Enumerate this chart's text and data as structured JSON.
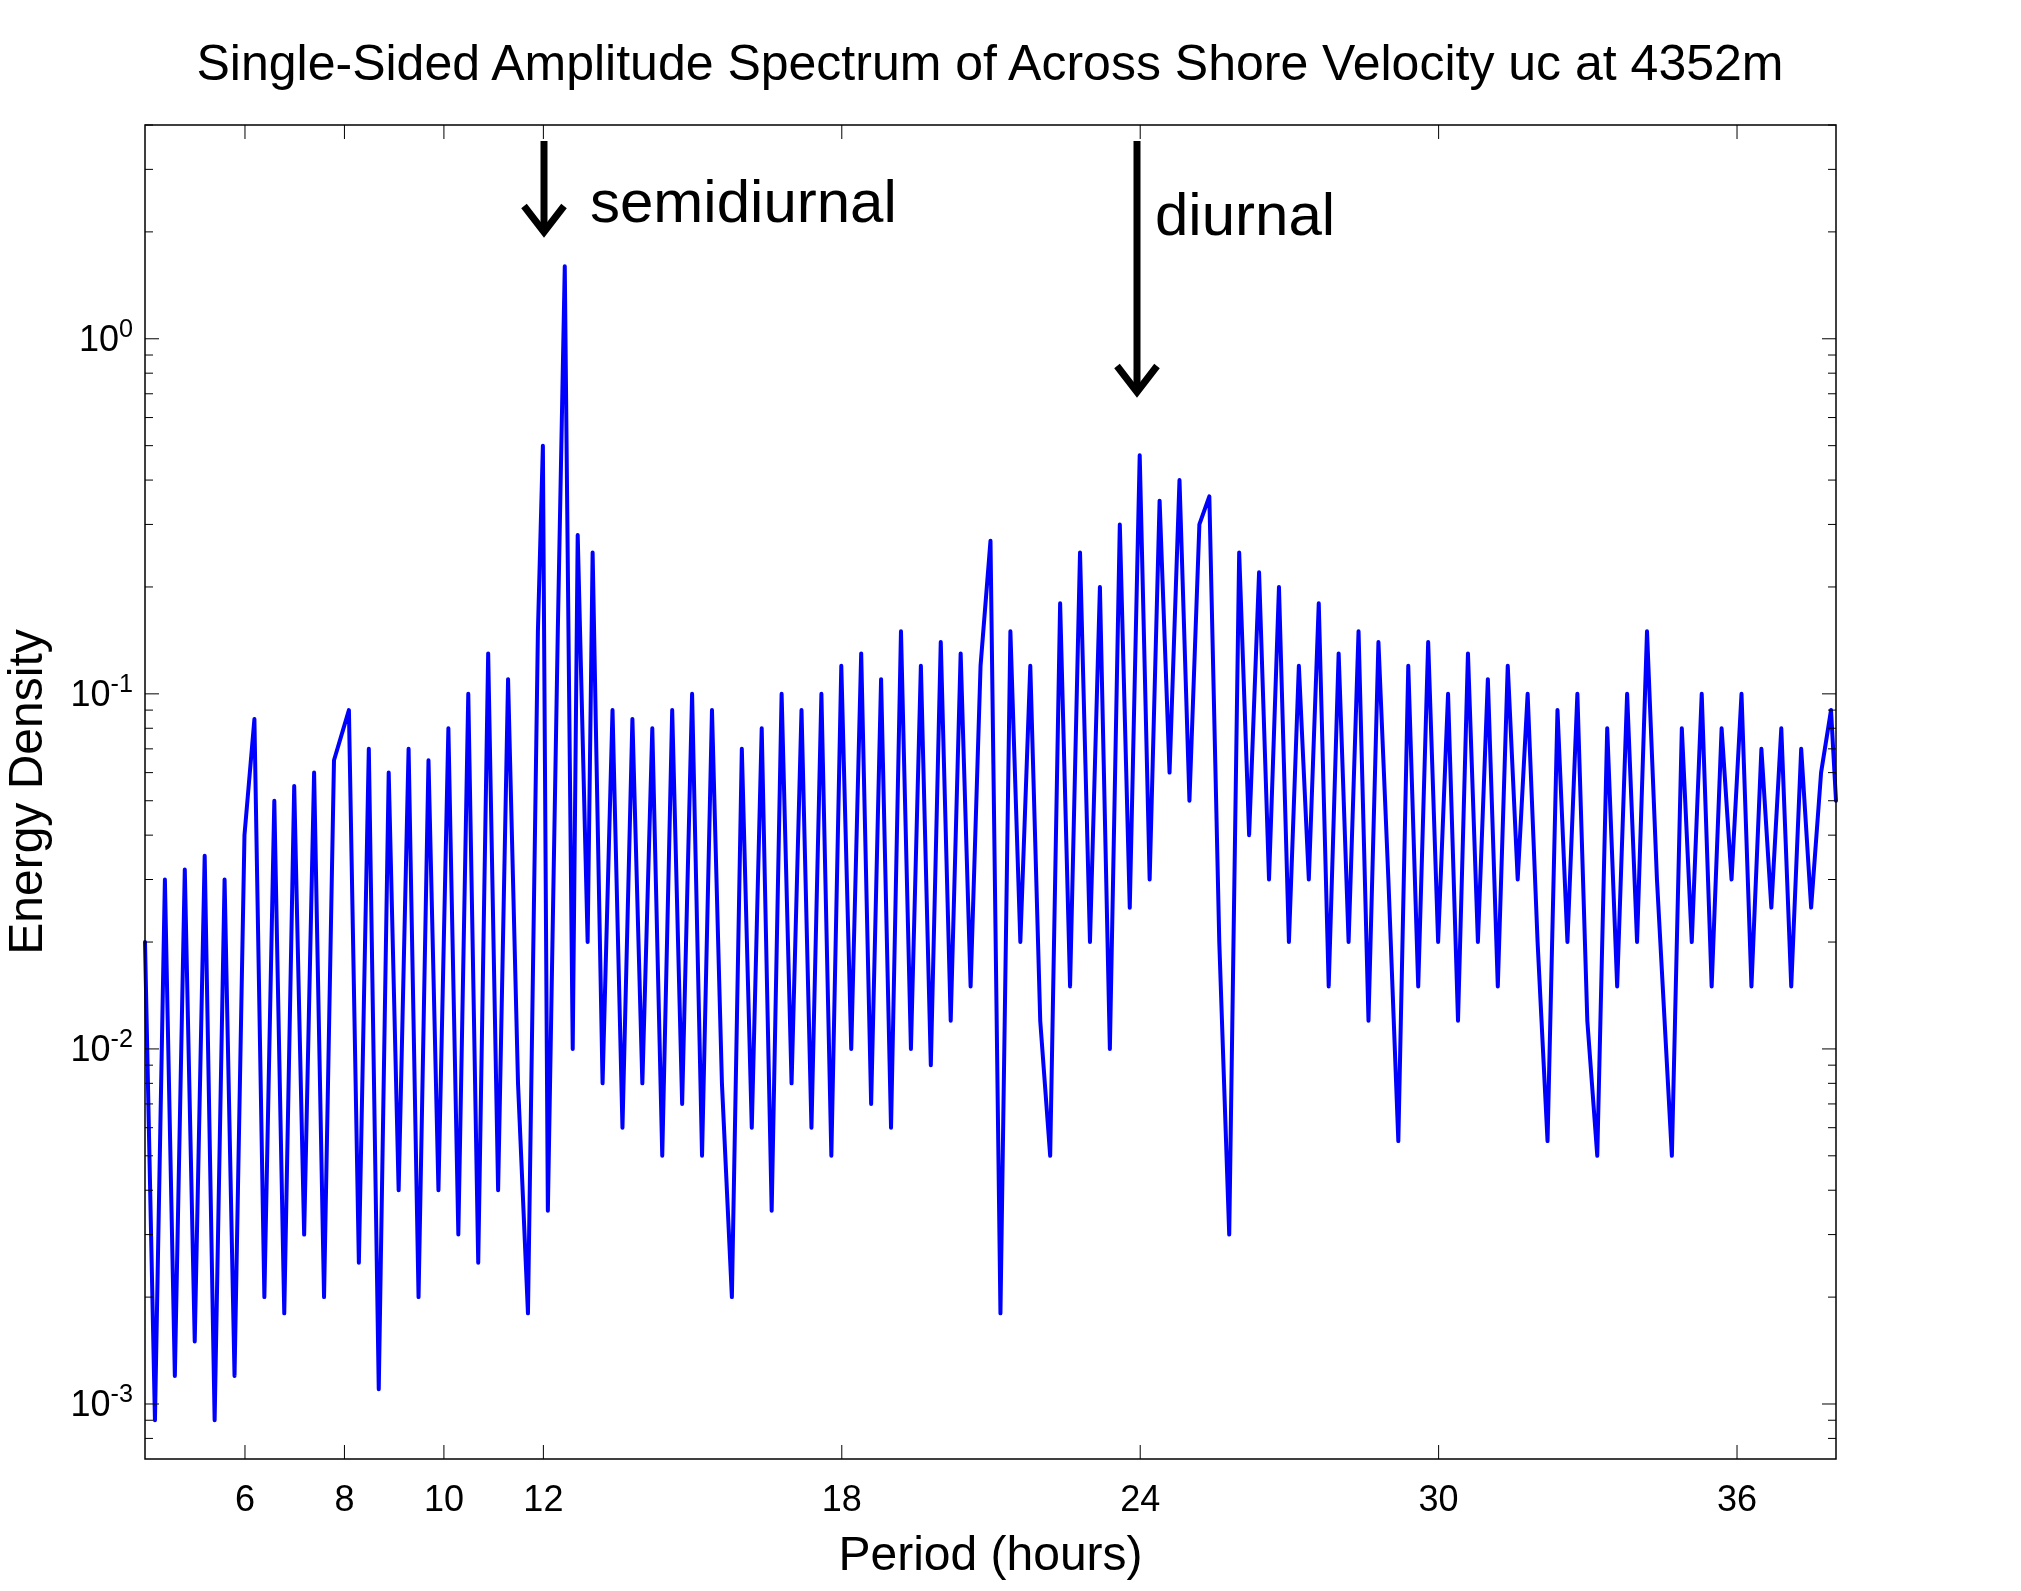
{
  "chart_data": {
    "type": "line",
    "title": "Single-Sided Amplitude Spectrum of Across Shore Velocity uc at 4352m",
    "xlabel": "Period (hours)",
    "ylabel": "Energy Density",
    "log": "y",
    "grid": false,
    "marker": "none",
    "line_style": "solid",
    "xlim": [
      4,
      38
    ],
    "xticks": [
      6,
      8,
      10,
      12,
      18,
      24,
      30,
      36
    ],
    "ylim": [
      0.0007,
      4
    ],
    "yticks": [
      {
        "value": 0.0008,
        "label": null
      },
      {
        "value": 0.0009,
        "label": null
      },
      {
        "value": 0.001,
        "label": "10$^{-3}$"
      },
      {
        "value": 0.002,
        "label": null
      },
      {
        "value": 0.003,
        "label": null
      },
      {
        "value": 0.004,
        "label": null
      },
      {
        "value": 0.005,
        "label": null
      },
      {
        "value": 0.006,
        "label": null
      },
      {
        "value": 0.007,
        "label": null
      },
      {
        "value": 0.008,
        "label": null
      },
      {
        "value": 0.009,
        "label": null
      },
      {
        "value": 0.01,
        "label": "10$^{-2}$"
      },
      {
        "value": 0.02,
        "label": null
      },
      {
        "value": 0.03,
        "label": null
      },
      {
        "value": 0.04,
        "label": null
      },
      {
        "value": 0.05,
        "label": null
      },
      {
        "value": 0.06,
        "label": null
      },
      {
        "value": 0.07,
        "label": null
      },
      {
        "value": 0.08,
        "label": null
      },
      {
        "value": 0.09,
        "label": null
      },
      {
        "value": 0.1,
        "label": "10$^{-1}$"
      },
      {
        "value": 0.2,
        "label": null
      },
      {
        "value": 0.3,
        "label": null
      },
      {
        "value": 0.4,
        "label": null
      },
      {
        "value": 0.5,
        "label": null
      },
      {
        "value": 0.6,
        "label": null
      },
      {
        "value": 0.7,
        "label": null
      },
      {
        "value": 0.8,
        "label": null
      },
      {
        "value": 0.9,
        "label": null
      },
      {
        "value": 1,
        "label": "10$^{0}$"
      },
      {
        "value": 2,
        "label": null
      },
      {
        "value": 3,
        "label": null
      },
      {
        "value": 4,
        "label": null
      }
    ],
    "annotations": [
      "semidiurnal",
      "diurnal"
    ],
    "series": [
      {
        "color": "#0000ff",
        "x": [
          4.0,
          4.2,
          4.4,
          4.6,
          4.8,
          5.0,
          5.2,
          5.4,
          5.6,
          5.8,
          6.0,
          6.2,
          6.4,
          6.6,
          6.8,
          7.0,
          7.2,
          7.4,
          7.6,
          7.8,
          8.1,
          8.3,
          8.5,
          8.7,
          8.9,
          9.1,
          9.3,
          9.5,
          9.7,
          9.9,
          10.1,
          10.3,
          10.5,
          10.7,
          10.9,
          11.1,
          11.3,
          11.5,
          11.7,
          11.9,
          12.0,
          12.1,
          12.3,
          12.44,
          12.6,
          12.7,
          12.9,
          13.0,
          13.2,
          13.4,
          13.6,
          13.8,
          14.0,
          14.2,
          14.4,
          14.6,
          14.8,
          15.0,
          15.2,
          15.4,
          15.6,
          15.8,
          16.0,
          16.2,
          16.4,
          16.6,
          16.8,
          17.0,
          17.2,
          17.4,
          17.6,
          17.8,
          18.0,
          18.2,
          18.4,
          18.6,
          18.8,
          19.0,
          19.2,
          19.4,
          19.6,
          19.8,
          20.0,
          20.2,
          20.4,
          20.6,
          20.8,
          21.0,
          21.2,
          21.4,
          21.6,
          21.8,
          22.0,
          22.2,
          22.4,
          22.6,
          22.8,
          23.0,
          23.2,
          23.4,
          23.6,
          23.8,
          24.0,
          24.2,
          24.4,
          24.6,
          24.8,
          25.0,
          25.2,
          25.4,
          25.6,
          25.8,
          26.0,
          26.2,
          26.4,
          26.6,
          26.8,
          27.0,
          27.2,
          27.4,
          27.6,
          27.8,
          28.0,
          28.2,
          28.4,
          28.6,
          28.8,
          29.0,
          29.2,
          29.4,
          29.6,
          29.8,
          30.0,
          30.2,
          30.4,
          30.6,
          30.8,
          31.0,
          31.2,
          31.4,
          31.6,
          31.8,
          32.0,
          32.2,
          32.4,
          32.6,
          32.8,
          33.0,
          33.2,
          33.4,
          33.6,
          33.8,
          34.0,
          34.2,
          34.4,
          34.7,
          34.9,
          35.1,
          35.3,
          35.5,
          35.7,
          35.9,
          36.1,
          36.3,
          36.5,
          36.7,
          36.9,
          37.1,
          37.3,
          37.5,
          37.7,
          37.9,
          38.0
        ],
        "values": [
          0.02,
          0.0009,
          0.03,
          0.0012,
          0.032,
          0.0015,
          0.035,
          0.0009,
          0.03,
          0.0012,
          0.04,
          0.085,
          0.002,
          0.05,
          0.0018,
          0.055,
          0.003,
          0.06,
          0.002,
          0.065,
          0.09,
          0.0025,
          0.07,
          0.0011,
          0.06,
          0.004,
          0.07,
          0.002,
          0.065,
          0.004,
          0.08,
          0.003,
          0.1,
          0.0025,
          0.13,
          0.004,
          0.11,
          0.008,
          0.0018,
          0.15,
          0.5,
          0.0035,
          0.15,
          1.6,
          0.01,
          0.28,
          0.02,
          0.25,
          0.008,
          0.09,
          0.006,
          0.085,
          0.008,
          0.08,
          0.005,
          0.09,
          0.007,
          0.1,
          0.005,
          0.09,
          0.008,
          0.002,
          0.07,
          0.006,
          0.08,
          0.0035,
          0.1,
          0.008,
          0.09,
          0.006,
          0.1,
          0.005,
          0.12,
          0.01,
          0.13,
          0.007,
          0.11,
          0.006,
          0.15,
          0.01,
          0.12,
          0.009,
          0.14,
          0.012,
          0.13,
          0.015,
          0.12,
          0.27,
          0.0018,
          0.15,
          0.02,
          0.12,
          0.012,
          0.005,
          0.18,
          0.015,
          0.25,
          0.02,
          0.2,
          0.01,
          0.3,
          0.025,
          0.47,
          0.03,
          0.35,
          0.06,
          0.4,
          0.05,
          0.3,
          0.36,
          0.02,
          0.003,
          0.25,
          0.04,
          0.22,
          0.03,
          0.2,
          0.02,
          0.12,
          0.03,
          0.18,
          0.015,
          0.13,
          0.02,
          0.15,
          0.012,
          0.14,
          0.03,
          0.0055,
          0.12,
          0.015,
          0.14,
          0.02,
          0.1,
          0.012,
          0.13,
          0.02,
          0.11,
          0.015,
          0.12,
          0.03,
          0.1,
          0.02,
          0.0055,
          0.09,
          0.02,
          0.1,
          0.012,
          0.005,
          0.08,
          0.015,
          0.1,
          0.02,
          0.15,
          0.03,
          0.005,
          0.08,
          0.02,
          0.1,
          0.015,
          0.08,
          0.03,
          0.1,
          0.015,
          0.07,
          0.025,
          0.08,
          0.015,
          0.07,
          0.025,
          0.06,
          0.09,
          0.05
        ]
      }
    ]
  }
}
